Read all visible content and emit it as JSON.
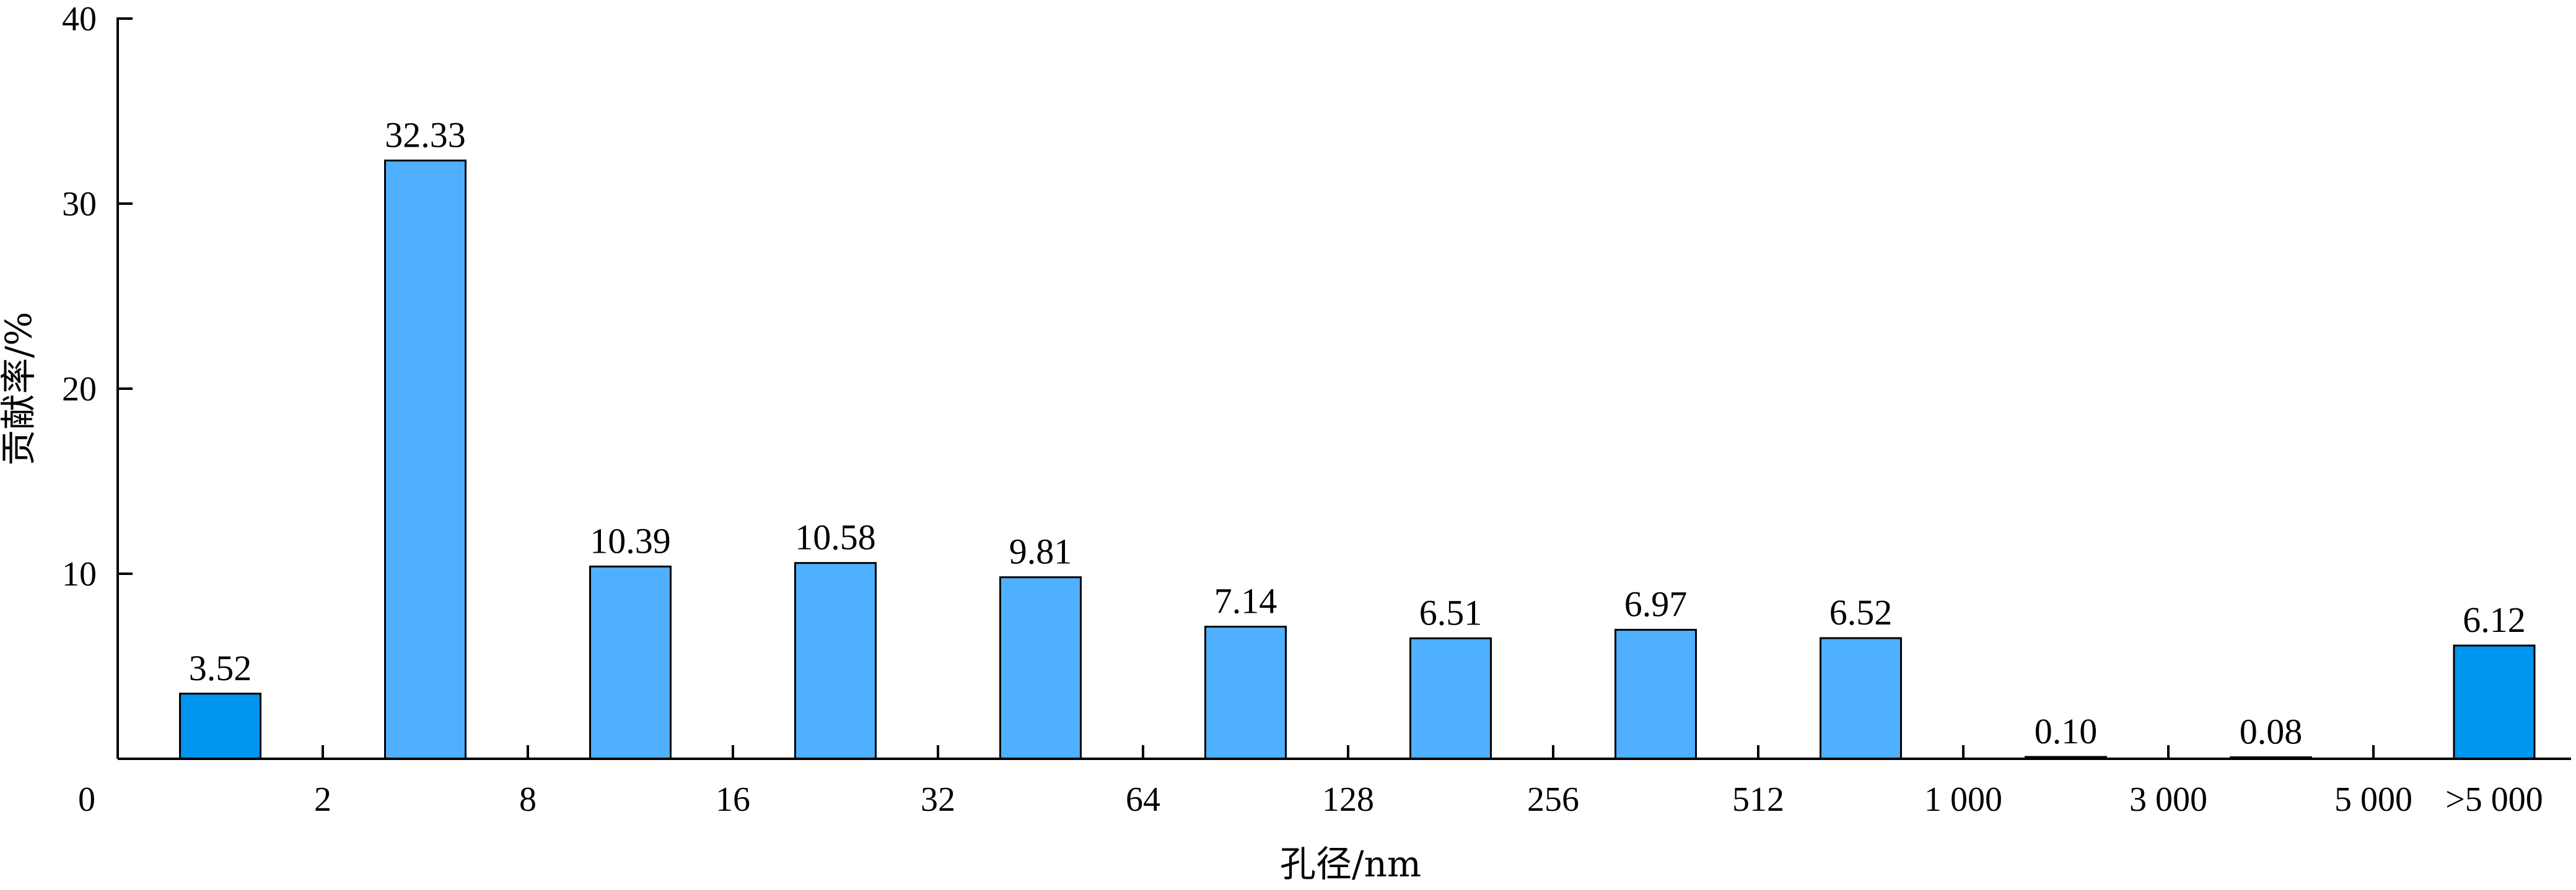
{
  "chart_data": {
    "type": "bar",
    "title": "",
    "xlabel": "孔径/nm",
    "ylabel": "贡献率/%",
    "ylim": [
      0,
      40
    ],
    "yticks": [
      10,
      20,
      30,
      40
    ],
    "x_boundary_labels": [
      "0",
      "2",
      "8",
      "16",
      "32",
      "64",
      "128",
      "256",
      "512",
      "1 000",
      "3 000",
      "5 000",
      ">5 000"
    ],
    "categories": [
      "0–2",
      "2–8",
      "8–16",
      "16–32",
      "32–64",
      "64–128",
      "128–256",
      "256–512",
      "512–1 000",
      "1 000–3 000",
      "3 000–5 000",
      ">5 000"
    ],
    "values": [
      3.52,
      32.33,
      10.39,
      10.58,
      9.81,
      7.14,
      6.51,
      6.97,
      6.52,
      0.1,
      0.08,
      6.12
    ],
    "value_labels": [
      "3.52",
      "32.33",
      "10.39",
      "10.58",
      "9.81",
      "7.14",
      "6.51",
      "6.97",
      "6.52",
      "0.10",
      "0.08",
      "6.12"
    ],
    "colors": {
      "bar": "#4FB0FF",
      "bar_edge": "#0095EE",
      "outline": "#000000"
    },
    "bar_colors": [
      "#0095EE",
      "#4FB0FF",
      "#4FB0FF",
      "#4FB0FF",
      "#4FB0FF",
      "#4FB0FF",
      "#4FB0FF",
      "#4FB0FF",
      "#4FB0FF",
      "#4FB0FF",
      "#4FB0FF",
      "#0095EE"
    ],
    "grid": false,
    "legend": "none"
  }
}
